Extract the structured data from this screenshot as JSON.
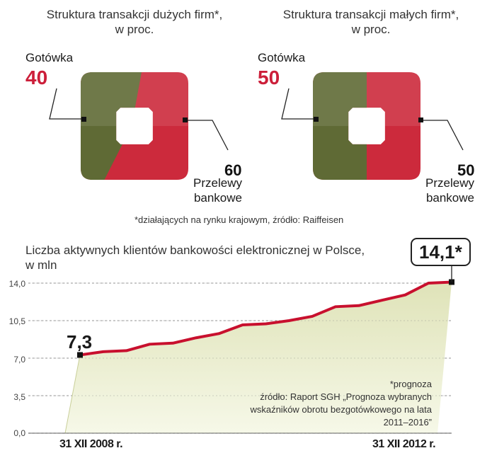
{
  "pie_left": {
    "caption_line1": "Struktura transakcji dużych firm*,",
    "caption_line2": "w proc.",
    "cash_label": "Gotówka",
    "cash_value": "40",
    "transfer_value": "60",
    "transfer_label_line1": "Przelewy",
    "transfer_label_line2": "bankowe"
  },
  "pie_right": {
    "caption_line1": "Struktura transakcji małych firm*,",
    "caption_line2": "w proc.",
    "cash_label": "Gotówka",
    "cash_value": "50",
    "transfer_value": "50",
    "transfer_label_line1": "Przelewy",
    "transfer_label_line2": "bankowe"
  },
  "footnote": "*działających na rynku krajowym, źródło: Raiffeisen",
  "line_chart": {
    "title_line1": "Liczba aktywnych klientów bankowości elektronicznej w Polsce,",
    "title_line2": "w mln",
    "start_value_label": "7,3",
    "end_value_label": "14,1*",
    "x_start_label": "31 XII 2008 r.",
    "x_end_label": "31 XII 2012 r.",
    "note_line1": "*prognoza",
    "note_line2": "źródło: Raport SGH „Prognoza wybranych",
    "note_line3": "wskaźników obrotu bezgotówkowego na lata",
    "note_line4": "2011–2016”"
  },
  "colors": {
    "cash": "#5f6a35",
    "transfer": "#cc2a3c",
    "line": "#c8102e",
    "area_top": "#dfe3b8",
    "area_bottom": "#f6f8e8"
  },
  "chart_data": [
    {
      "type": "pie",
      "title": "Struktura transakcji dużych firm*, w proc.",
      "categories": [
        "Gotówka",
        "Przelewy bankowe"
      ],
      "values": [
        40,
        60
      ]
    },
    {
      "type": "pie",
      "title": "Struktura transakcji małych firm*, w proc.",
      "categories": [
        "Gotówka",
        "Przelewy bankowe"
      ],
      "values": [
        50,
        50
      ]
    },
    {
      "type": "area",
      "title": "Liczba aktywnych klientów bankowości elektronicznej w Polsce, w mln",
      "y_ticks": [
        "0,0",
        "3,5",
        "7,0",
        "10,5",
        "14,0"
      ],
      "y_tick_values": [
        0,
        3.5,
        7,
        10.5,
        14
      ],
      "ylim": [
        0,
        14
      ],
      "x_labels": [
        "31 XII 2008 r.",
        "31 XII 2012 r."
      ],
      "values": [
        7.3,
        7.6,
        7.7,
        8.3,
        8.4,
        8.9,
        9.3,
        10.1,
        10.2,
        10.5,
        10.9,
        11.8,
        11.9,
        12.4,
        12.9,
        14.0,
        14.1
      ],
      "grid": true
    }
  ]
}
